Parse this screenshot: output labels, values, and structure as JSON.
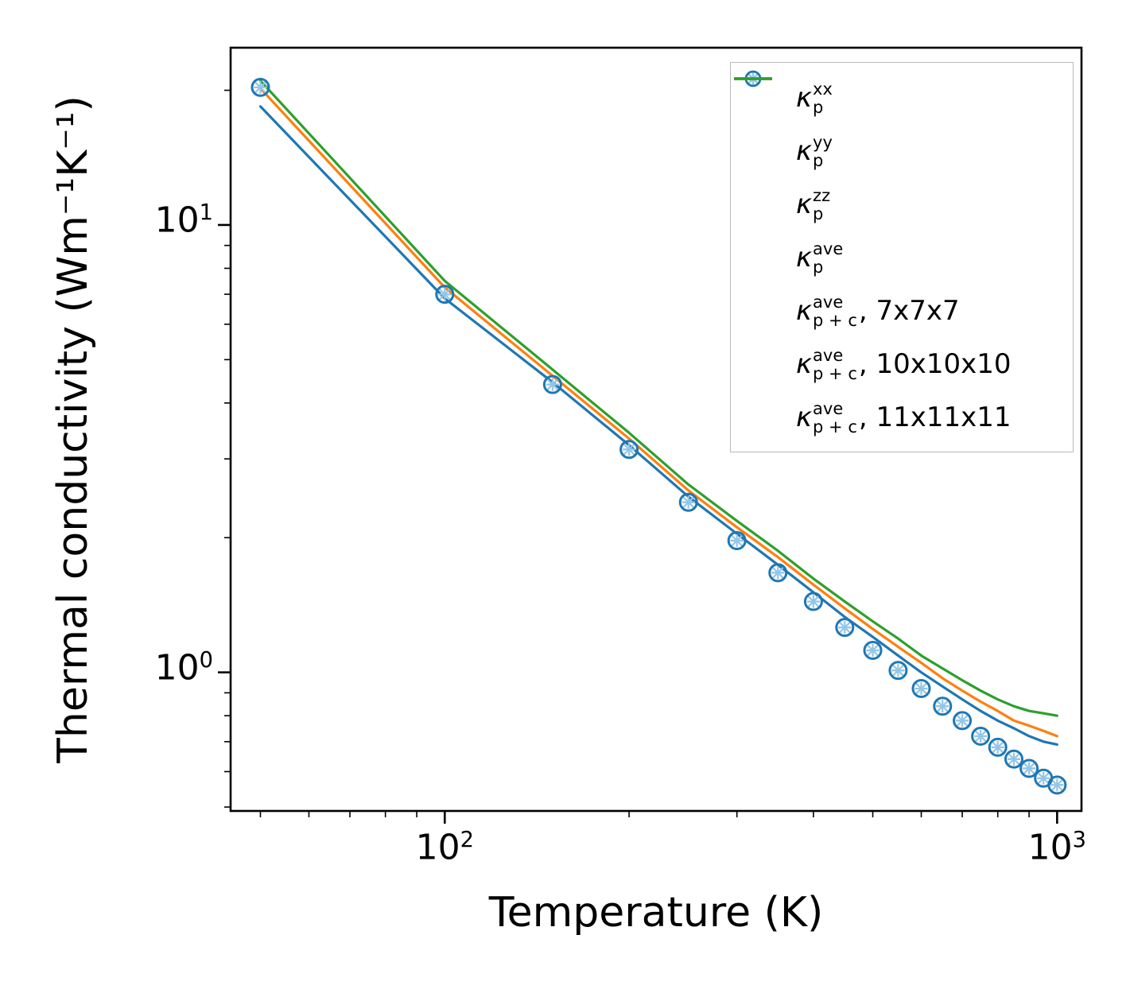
{
  "figure": {
    "background_color": "#ffffff",
    "spine_color": "#000000"
  },
  "chart_data": {
    "type": "line",
    "title": "",
    "xlabel": "Temperature (K)",
    "ylabel": "Thermal conductivity (Wm⁻¹K⁻¹)",
    "x_scale": "log",
    "y_scale": "log",
    "xlim": [
      44.7,
      1096
    ],
    "ylim": [
      0.49,
      24.9
    ],
    "grid": false,
    "legend_position": "upper right",
    "x_ticks": [
      {
        "value": 100,
        "base": "10",
        "exponent": "2"
      },
      {
        "value": 1000,
        "base": "10",
        "exponent": "3"
      }
    ],
    "y_ticks": [
      {
        "value": 1,
        "base": "10",
        "exponent": "0"
      },
      {
        "value": 10,
        "base": "10",
        "exponent": "1"
      }
    ],
    "x_minor_ticks": [
      50,
      60,
      70,
      80,
      90,
      200,
      300,
      400,
      500,
      600,
      700,
      800,
      900
    ],
    "y_minor_ticks": [
      0.5,
      0.6,
      0.7,
      0.8,
      0.9,
      2,
      3,
      4,
      5,
      6,
      7,
      8,
      9,
      20
    ],
    "temperatures": [
      50,
      100,
      150,
      200,
      250,
      300,
      350,
      400,
      450,
      500,
      550,
      600,
      650,
      700,
      750,
      800,
      850,
      900,
      950,
      1000
    ],
    "series": [
      {
        "name": "kappa_p_xx",
        "legend": {
          "symbol": "κ",
          "sup": "xx",
          "sub": "p",
          "suffix": ""
        },
        "marker": "plus",
        "color": "#94c6e7",
        "values": [
          20.3,
          7.0,
          4.4,
          3.15,
          2.4,
          1.97,
          1.67,
          1.44,
          1.26,
          1.12,
          1.01,
          0.92,
          0.84,
          0.78,
          0.72,
          0.68,
          0.64,
          0.61,
          0.58,
          0.56
        ]
      },
      {
        "name": "kappa_p_yy",
        "legend": {
          "symbol": "κ",
          "sup": "yy",
          "sub": "p",
          "suffix": ""
        },
        "marker": "cross",
        "color": "#94c6e7",
        "values": [
          20.3,
          7.0,
          4.4,
          3.15,
          2.4,
          1.97,
          1.67,
          1.44,
          1.26,
          1.12,
          1.01,
          0.92,
          0.84,
          0.78,
          0.72,
          0.68,
          0.64,
          0.61,
          0.58,
          0.56
        ]
      },
      {
        "name": "kappa_p_zz",
        "legend": {
          "symbol": "κ",
          "sup": "zz",
          "sub": "p",
          "suffix": ""
        },
        "marker": "dash",
        "color": "#94c6e7",
        "values": [
          20.3,
          7.0,
          4.4,
          3.15,
          2.4,
          1.97,
          1.67,
          1.44,
          1.26,
          1.12,
          1.01,
          0.92,
          0.84,
          0.78,
          0.72,
          0.68,
          0.64,
          0.61,
          0.58,
          0.56
        ]
      },
      {
        "name": "kappa_p_ave",
        "legend": {
          "symbol": "κ",
          "sup": "ave",
          "sub": "p",
          "suffix": ""
        },
        "marker": "circle",
        "color": "#1f77b4",
        "values": [
          20.3,
          7.0,
          4.4,
          3.15,
          2.4,
          1.97,
          1.67,
          1.44,
          1.26,
          1.12,
          1.01,
          0.92,
          0.84,
          0.78,
          0.72,
          0.68,
          0.64,
          0.61,
          0.58,
          0.56
        ]
      },
      {
        "name": "kappa_p_plus_c_ave_7x7x7",
        "legend": {
          "symbol": "κ",
          "sup": "ave",
          "sub": "p + c",
          "suffix": ", 7x7x7"
        },
        "marker": "line",
        "color": "#1f77b4",
        "values": [
          18.4,
          6.85,
          4.45,
          3.22,
          2.47,
          2.04,
          1.74,
          1.51,
          1.33,
          1.2,
          1.09,
          1.0,
          0.93,
          0.87,
          0.82,
          0.78,
          0.75,
          0.72,
          0.7,
          0.69
        ]
      },
      {
        "name": "kappa_p_plus_c_ave_10x10x10",
        "legend": {
          "symbol": "κ",
          "sup": "ave",
          "sub": "p + c",
          "suffix": ", 10x10x10"
        },
        "marker": "line",
        "color": "#ff7f0e",
        "values": [
          20.2,
          7.25,
          4.6,
          3.33,
          2.55,
          2.11,
          1.81,
          1.57,
          1.39,
          1.25,
          1.14,
          1.05,
          0.97,
          0.91,
          0.86,
          0.82,
          0.78,
          0.76,
          0.74,
          0.72
        ]
      },
      {
        "name": "kappa_p_plus_c_ave_11x11x11",
        "legend": {
          "symbol": "κ",
          "sup": "ave",
          "sub": "p + c",
          "suffix": ", 11x11x11"
        },
        "marker": "line",
        "color": "#2ca02c",
        "values": [
          21.0,
          7.5,
          4.75,
          3.43,
          2.63,
          2.18,
          1.87,
          1.62,
          1.44,
          1.3,
          1.19,
          1.09,
          1.02,
          0.96,
          0.91,
          0.87,
          0.84,
          0.82,
          0.81,
          0.8
        ]
      }
    ]
  }
}
